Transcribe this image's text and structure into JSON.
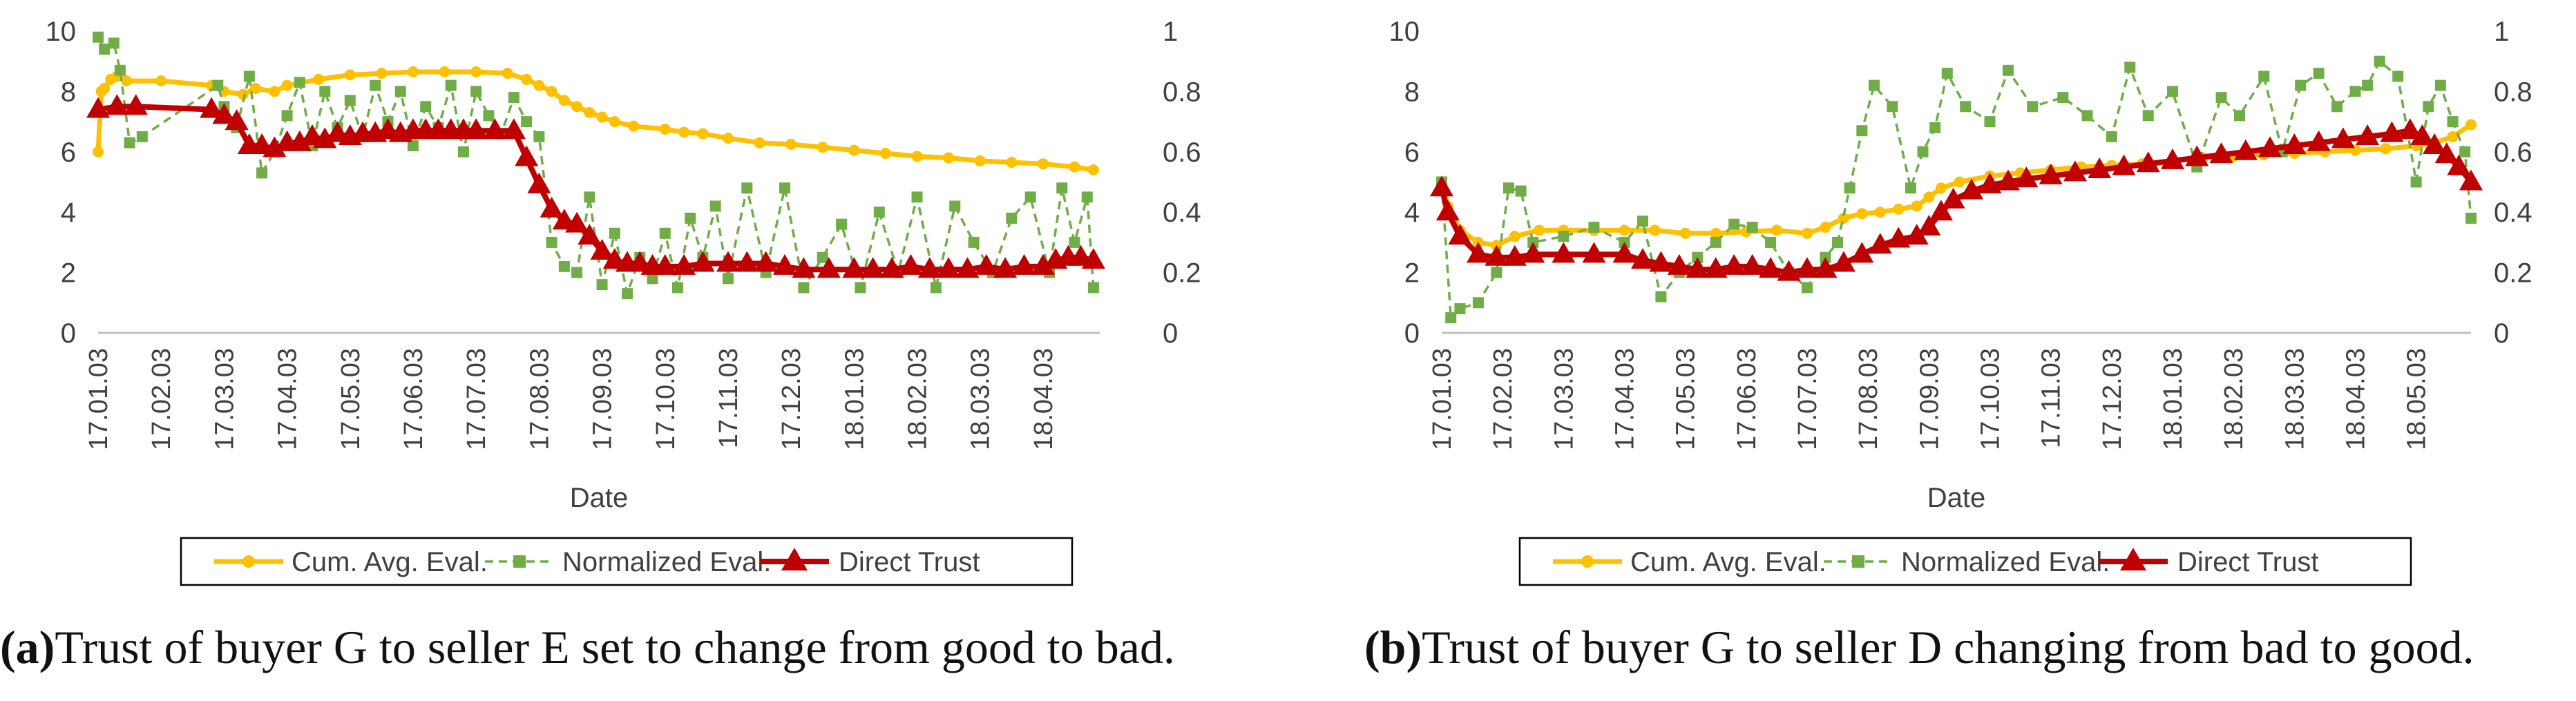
{
  "chart_data": [
    {
      "type": "line",
      "panel_letter": "a",
      "caption_text": "Trust of buyer G to seller E set to change from good to bad.",
      "xlabel": "Date",
      "x_ticks": [
        "17.01.03",
        "17.02.03",
        "17.03.03",
        "17.04.03",
        "17.05.03",
        "17.06.03",
        "17.07.03",
        "17.08.03",
        "17.09.03",
        "17.10.03",
        "17.11.03",
        "17.12.03",
        "18.01.03",
        "18.02.03",
        "18.03.03",
        "18.04.03"
      ],
      "x_range": [
        0,
        15.9
      ],
      "y_left_ticks": [
        "0",
        "2",
        "4",
        "6",
        "8",
        "10"
      ],
      "y_left_range": [
        0,
        10
      ],
      "y_right_ticks": [
        "0",
        "0.2",
        "0.4",
        "0.6",
        "0.8",
        "1"
      ],
      "y_right_range": [
        0,
        1
      ],
      "legend": [
        "Cum. Avg. Eval.",
        "Normalized Eval.",
        "Direct Trust"
      ],
      "series": [
        {
          "name": "Cum. Avg. Eval.",
          "axis": "left",
          "color": "#ffc000",
          "x": [
            0.0,
            0.05,
            0.1,
            0.2,
            0.3,
            0.45,
            1.0,
            1.8,
            2.0,
            2.3,
            2.5,
            2.8,
            3.0,
            3.5,
            4.0,
            4.5,
            5.0,
            5.5,
            6.0,
            6.5,
            6.8,
            7.0,
            7.2,
            7.4,
            7.6,
            7.8,
            8.0,
            8.2,
            8.5,
            9.0,
            9.3,
            9.6,
            10.0,
            10.5,
            11.0,
            11.5,
            12.0,
            12.5,
            13.0,
            13.5,
            14.0,
            14.5,
            15.0,
            15.5,
            15.8
          ],
          "y": [
            6.0,
            8.0,
            8.1,
            8.4,
            8.5,
            8.35,
            8.35,
            8.2,
            8.0,
            7.9,
            8.1,
            8.0,
            8.2,
            8.4,
            8.55,
            8.6,
            8.65,
            8.65,
            8.65,
            8.6,
            8.4,
            8.2,
            8.0,
            7.7,
            7.5,
            7.3,
            7.15,
            7.0,
            6.85,
            6.75,
            6.65,
            6.6,
            6.45,
            6.3,
            6.25,
            6.15,
            6.05,
            5.95,
            5.85,
            5.8,
            5.7,
            5.65,
            5.6,
            5.5,
            5.4
          ]
        },
        {
          "name": "Normalized Eval.",
          "axis": "right",
          "color": "#70ad47",
          "x": [
            0.0,
            0.1,
            0.25,
            0.35,
            0.5,
            0.7,
            1.9,
            2.0,
            2.2,
            2.4,
            2.6,
            2.8,
            3.0,
            3.2,
            3.4,
            3.6,
            3.8,
            4.0,
            4.2,
            4.4,
            4.6,
            4.8,
            5.0,
            5.2,
            5.4,
            5.6,
            5.8,
            6.0,
            6.2,
            6.4,
            6.6,
            6.8,
            7.0,
            7.2,
            7.4,
            7.6,
            7.8,
            8.0,
            8.2,
            8.4,
            8.6,
            8.8,
            9.0,
            9.2,
            9.4,
            9.6,
            9.8,
            10.0,
            10.3,
            10.6,
            10.9,
            11.2,
            11.5,
            11.8,
            12.1,
            12.4,
            12.7,
            13.0,
            13.3,
            13.6,
            13.9,
            14.2,
            14.5,
            14.8,
            15.1,
            15.3,
            15.5,
            15.7,
            15.8
          ],
          "y": [
            0.98,
            0.94,
            0.96,
            0.87,
            0.63,
            0.65,
            0.82,
            0.75,
            0.68,
            0.85,
            0.53,
            0.6,
            0.72,
            0.83,
            0.62,
            0.8,
            0.68,
            0.77,
            0.65,
            0.82,
            0.7,
            0.8,
            0.62,
            0.75,
            0.68,
            0.82,
            0.6,
            0.8,
            0.72,
            0.66,
            0.78,
            0.7,
            0.65,
            0.3,
            0.22,
            0.2,
            0.45,
            0.16,
            0.33,
            0.13,
            0.25,
            0.18,
            0.33,
            0.15,
            0.38,
            0.25,
            0.42,
            0.18,
            0.48,
            0.2,
            0.48,
            0.15,
            0.25,
            0.36,
            0.15,
            0.4,
            0.2,
            0.45,
            0.15,
            0.42,
            0.3,
            0.2,
            0.38,
            0.45,
            0.2,
            0.48,
            0.3,
            0.45,
            0.15
          ]
        },
        {
          "name": "Direct Trust",
          "axis": "left",
          "color": "#c00000",
          "x": [
            0.0,
            0.3,
            0.6,
            1.8,
            2.0,
            2.2,
            2.4,
            2.6,
            2.8,
            3.0,
            3.2,
            3.4,
            3.6,
            3.8,
            4.0,
            4.2,
            4.4,
            4.6,
            4.8,
            5.0,
            5.2,
            5.4,
            5.6,
            5.8,
            6.0,
            6.3,
            6.6,
            6.8,
            7.0,
            7.2,
            7.4,
            7.6,
            7.8,
            8.0,
            8.2,
            8.4,
            8.6,
            8.8,
            9.0,
            9.3,
            9.6,
            10.0,
            10.3,
            10.6,
            10.9,
            11.2,
            11.6,
            12.0,
            12.3,
            12.6,
            12.9,
            13.2,
            13.5,
            13.8,
            14.1,
            14.4,
            14.7,
            15.0,
            15.2,
            15.4,
            15.6,
            15.8
          ],
          "y": [
            7.4,
            7.5,
            7.5,
            7.4,
            7.2,
            7.0,
            6.2,
            6.2,
            6.1,
            6.3,
            6.3,
            6.5,
            6.4,
            6.6,
            6.5,
            6.6,
            6.6,
            6.7,
            6.6,
            6.7,
            6.7,
            6.7,
            6.7,
            6.7,
            6.7,
            6.7,
            6.7,
            5.8,
            4.9,
            4.1,
            3.7,
            3.6,
            3.2,
            2.7,
            2.4,
            2.3,
            2.3,
            2.2,
            2.2,
            2.2,
            2.3,
            2.3,
            2.3,
            2.3,
            2.2,
            2.1,
            2.1,
            2.1,
            2.1,
            2.1,
            2.2,
            2.1,
            2.1,
            2.1,
            2.2,
            2.1,
            2.2,
            2.2,
            2.4,
            2.5,
            2.5,
            2.4
          ]
        }
      ]
    },
    {
      "type": "line",
      "panel_letter": "b",
      "caption_text": "Trust of buyer G to seller D changing from bad to good.",
      "xlabel": "Date",
      "x_ticks": [
        "17.01.03",
        "17.02.03",
        "17.03.03",
        "17.04.03",
        "17.05.03",
        "17.06.03",
        "17.07.03",
        "17.08.03",
        "17.09.03",
        "17.10.03",
        "17.11.03",
        "17.12.03",
        "18.01.03",
        "18.02.03",
        "18.03.03",
        "18.04.03",
        "18.05.03"
      ],
      "x_range": [
        0,
        16.9
      ],
      "y_left_ticks": [
        "0",
        "2",
        "4",
        "6",
        "8",
        "10"
      ],
      "y_left_range": [
        0,
        10
      ],
      "y_right_ticks": [
        "0",
        "0.2",
        "0.4",
        "0.6",
        "0.8",
        "1"
      ],
      "y_right_range": [
        0,
        1
      ],
      "legend": [
        "Cum. Avg. Eval.",
        "Normalized Eval.",
        "Direct Trust"
      ],
      "series": [
        {
          "name": "Cum. Avg. Eval.",
          "axis": "left",
          "color": "#ffc000",
          "x": [
            0.0,
            0.1,
            0.3,
            0.6,
            0.9,
            1.2,
            1.6,
            2.0,
            2.5,
            3.0,
            3.5,
            4.0,
            4.5,
            5.0,
            5.5,
            6.0,
            6.3,
            6.6,
            6.9,
            7.2,
            7.5,
            7.8,
            8.0,
            8.2,
            8.5,
            9.0,
            9.5,
            10.0,
            10.5,
            11.0,
            11.5,
            12.0,
            12.5,
            13.0,
            13.5,
            14.0,
            14.5,
            15.0,
            15.5,
            16.0,
            16.3,
            16.6,
            16.9
          ],
          "y": [
            5.0,
            4.2,
            3.4,
            3.0,
            2.9,
            3.2,
            3.4,
            3.4,
            3.4,
            3.4,
            3.4,
            3.3,
            3.3,
            3.35,
            3.4,
            3.3,
            3.5,
            3.8,
            3.95,
            4.0,
            4.1,
            4.2,
            4.5,
            4.8,
            5.0,
            5.2,
            5.3,
            5.4,
            5.5,
            5.55,
            5.6,
            5.7,
            5.8,
            5.85,
            5.9,
            5.95,
            6.0,
            6.05,
            6.1,
            6.2,
            6.3,
            6.5,
            6.9
          ]
        },
        {
          "name": "Normalized Eval.",
          "axis": "right",
          "color": "#70ad47",
          "x": [
            0.0,
            0.15,
            0.3,
            0.6,
            0.9,
            1.1,
            1.3,
            1.5,
            2.0,
            2.5,
            3.0,
            3.3,
            3.6,
            3.9,
            4.2,
            4.5,
            4.8,
            5.1,
            5.4,
            5.7,
            6.0,
            6.3,
            6.5,
            6.7,
            6.9,
            7.1,
            7.4,
            7.7,
            7.9,
            8.1,
            8.3,
            8.6,
            9.0,
            9.3,
            9.7,
            10.2,
            10.6,
            11.0,
            11.3,
            11.6,
            12.0,
            12.4,
            12.8,
            13.1,
            13.5,
            13.8,
            14.1,
            14.4,
            14.7,
            15.0,
            15.2,
            15.4,
            15.7,
            16.0,
            16.2,
            16.4,
            16.6,
            16.8,
            16.9
          ],
          "y": [
            0.5,
            0.05,
            0.08,
            0.1,
            0.2,
            0.48,
            0.47,
            0.3,
            0.32,
            0.35,
            0.3,
            0.37,
            0.12,
            0.2,
            0.25,
            0.3,
            0.36,
            0.35,
            0.3,
            0.2,
            0.15,
            0.25,
            0.3,
            0.48,
            0.67,
            0.82,
            0.75,
            0.48,
            0.6,
            0.68,
            0.86,
            0.75,
            0.7,
            0.87,
            0.75,
            0.78,
            0.72,
            0.65,
            0.88,
            0.72,
            0.8,
            0.55,
            0.78,
            0.72,
            0.85,
            0.6,
            0.82,
            0.86,
            0.75,
            0.8,
            0.82,
            0.9,
            0.85,
            0.5,
            0.75,
            0.82,
            0.7,
            0.6,
            0.38
          ]
        },
        {
          "name": "Direct Trust",
          "axis": "left",
          "color": "#c00000",
          "x": [
            0.0,
            0.1,
            0.3,
            0.6,
            0.9,
            1.2,
            1.5,
            2.0,
            2.5,
            3.0,
            3.3,
            3.6,
            3.9,
            4.2,
            4.5,
            4.8,
            5.1,
            5.4,
            5.7,
            6.0,
            6.3,
            6.6,
            6.9,
            7.2,
            7.5,
            7.8,
            8.0,
            8.2,
            8.4,
            8.7,
            9.0,
            9.3,
            9.6,
            10.0,
            10.4,
            10.8,
            11.2,
            11.6,
            12.0,
            12.4,
            12.8,
            13.2,
            13.6,
            14.0,
            14.4,
            14.8,
            15.2,
            15.6,
            15.9,
            16.1,
            16.3,
            16.5,
            16.7,
            16.9
          ],
          "y": [
            4.8,
            4.0,
            3.2,
            2.6,
            2.5,
            2.5,
            2.6,
            2.6,
            2.6,
            2.6,
            2.4,
            2.3,
            2.2,
            2.1,
            2.1,
            2.2,
            2.2,
            2.1,
            2.0,
            2.1,
            2.1,
            2.3,
            2.6,
            2.9,
            3.1,
            3.2,
            3.5,
            4.0,
            4.4,
            4.7,
            4.9,
            5.0,
            5.1,
            5.2,
            5.3,
            5.4,
            5.5,
            5.6,
            5.7,
            5.8,
            5.9,
            6.0,
            6.1,
            6.2,
            6.3,
            6.4,
            6.5,
            6.6,
            6.7,
            6.5,
            6.2,
            5.9,
            5.5,
            5.0
          ]
        }
      ]
    }
  ]
}
